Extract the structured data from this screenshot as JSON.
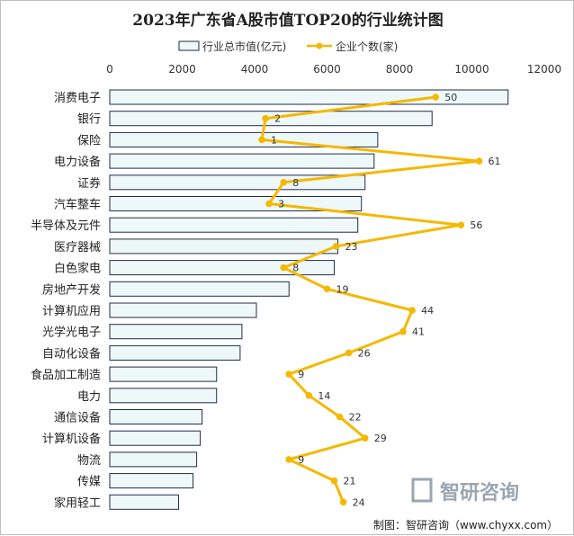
{
  "chart_data": {
    "type": "bar",
    "orientation": "horizontal",
    "title": "2023年广东省A股市值TOP20的行业统计图",
    "categories": [
      "消费电子",
      "银行",
      "保险",
      "电力设备",
      "证券",
      "汽车整车",
      "半导体及元件",
      "医疗器械",
      "白色家电",
      "房地产开发",
      "计算机应用",
      "光学光电子",
      "自动化设备",
      "食品加工制造",
      "电力",
      "通信设备",
      "计算机设备",
      "物流",
      "传媒",
      "家用轻工"
    ],
    "series": [
      {
        "name": "行业总市值(亿元)",
        "kind": "bar",
        "color": "#eef8f8",
        "stroke": "#1f2d4a",
        "values": [
          11000,
          8900,
          7400,
          7300,
          7050,
          6950,
          6850,
          6300,
          6200,
          4950,
          4050,
          3650,
          3600,
          2950,
          2950,
          2550,
          2500,
          2400,
          2300,
          1900
        ]
      },
      {
        "name": "企业个数(家)",
        "kind": "line",
        "color": "#f5b800",
        "values": [
          50,
          2,
          1,
          61,
          8,
          3,
          56,
          23,
          8,
          19,
          44,
          41,
          26,
          9,
          14,
          22,
          29,
          9,
          21,
          24
        ],
        "point_x_axis_values": [
          9000,
          4300,
          4200,
          10200,
          4800,
          4400,
          9700,
          6250,
          4800,
          6000,
          8350,
          8100,
          6600,
          4950,
          5500,
          6350,
          7050,
          4950,
          6200,
          6450
        ]
      }
    ],
    "xlim": [
      0,
      12000
    ],
    "xticks": [
      "0",
      "2000",
      "4000",
      "6000",
      "8000",
      "10000",
      "12000"
    ],
    "legend_position": "top",
    "grid": false
  },
  "credit": "制图：智研咨询（www.chyxx.com）",
  "watermark": "智研咨询"
}
